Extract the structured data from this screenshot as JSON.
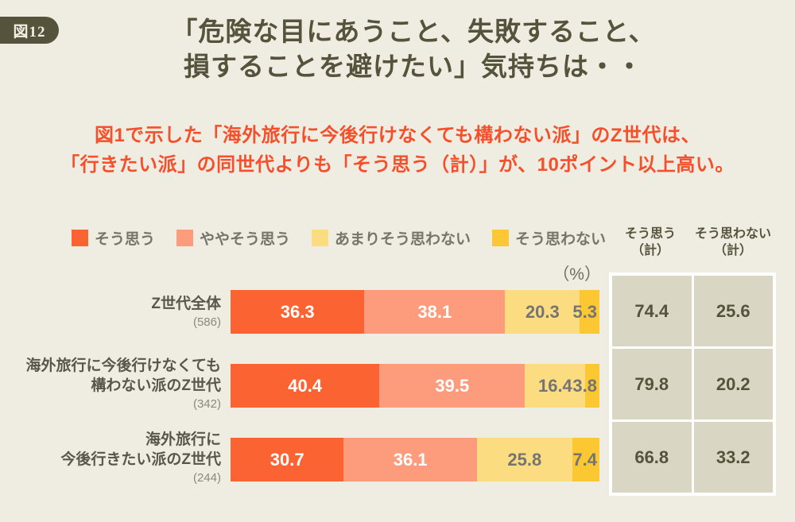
{
  "header": {
    "badge": "図12",
    "title_line1": "「危険な目にあうこと、失敗すること、",
    "title_line2": "損することを避けたい」気持ちは・・",
    "annotation_line1": "図1で示した「海外旅行に今後行けなくても構わない派」のZ世代は、",
    "annotation_line2": "「行きたい派」の同世代よりも「そう思う（計）」が、10ポイント以上高い。"
  },
  "colors": {
    "background": "#efece1",
    "title_text": "#56533c",
    "annotation_text": "#f4502c",
    "table_cell": "#d9d6c3",
    "legend_text": "#76746b",
    "value_on_light_segment": "#757474"
  },
  "unit_label": "（%）",
  "chart_data": {
    "type": "bar",
    "orientation": "horizontal",
    "stacked": true,
    "unit": "%",
    "xlim": [
      0,
      100
    ],
    "categories": [
      "Z世代全体 (586)",
      "海外旅行に今後行けなくても構わない派のZ世代 (342)",
      "海外旅行に今後行きたい派のZ世代 (244)"
    ],
    "category_label_lines": [
      [
        "Z世代全体"
      ],
      [
        "海外旅行に今後行けなくても",
        "構わない派のZ世代"
      ],
      [
        "海外旅行に",
        "今後行きたい派のZ世代"
      ]
    ],
    "sample_sizes": [
      "(586)",
      "(342)",
      "(244)"
    ],
    "series": [
      {
        "name": "そう思う",
        "color": "#fc6333",
        "values": [
          36.3,
          40.4,
          30.7
        ]
      },
      {
        "name": "ややそう思う",
        "color": "#fc9c7c",
        "values": [
          38.1,
          39.5,
          36.1
        ]
      },
      {
        "name": "あまりそう思わない",
        "color": "#fcdc80",
        "values": [
          20.3,
          16.4,
          25.8
        ]
      },
      {
        "name": "そう思わない",
        "color": "#fbc733",
        "values": [
          5.3,
          3.8,
          7.4
        ]
      }
    ],
    "totals": {
      "agree_header": [
        "そう思う",
        "（計）"
      ],
      "disagree_header": [
        "そう思わない",
        "（計）"
      ],
      "agree": [
        74.4,
        79.8,
        66.8
      ],
      "disagree": [
        25.6,
        20.2,
        33.2
      ]
    }
  }
}
